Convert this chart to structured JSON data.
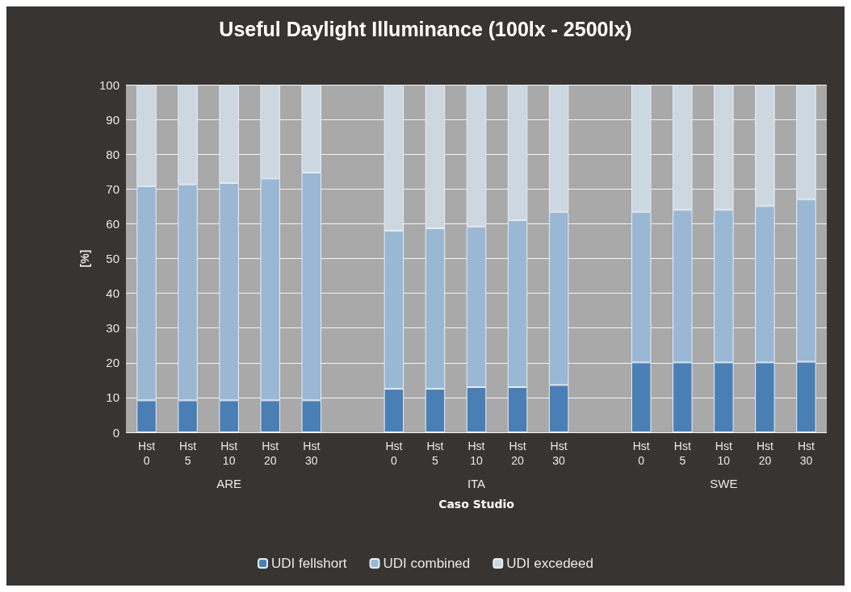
{
  "chart_data": {
    "type": "bar",
    "title": "Useful Daylight Illuminance (100lx - 2500lx)",
    "xlabel": "Caso Studio",
    "ylabel": "[%]",
    "categories": [
      "Hst 0",
      "Hst 5",
      "Hst 10",
      "Hst 20",
      "Hst 30",
      null,
      "Hst 0",
      "Hst 5",
      "Hst 10",
      "Hst 20",
      "Hst 30",
      null,
      "Hst 0",
      "Hst 5",
      "Hst 10",
      "Hst 20",
      "Hst 30"
    ],
    "annotations": [
      "ARE",
      "ITA",
      "SWE"
    ],
    "stacked": true,
    "series": [
      {
        "name": "UDI fellshort",
        "color": "#4a7fb5",
        "values": [
          9.2,
          9.2,
          9.2,
          9.2,
          9.2,
          null,
          12.5,
          12.5,
          13,
          13,
          13.6,
          null,
          20.1,
          20.1,
          20.1,
          20.1,
          20.3
        ]
      },
      {
        "name": "UDI combined",
        "color": "#9ab8d4",
        "values": [
          61.6,
          62.1,
          62.5,
          63.8,
          65.5,
          null,
          45.5,
          46.2,
          46.2,
          48,
          49.8,
          null,
          43.3,
          43.9,
          43.9,
          45,
          46.7
        ]
      },
      {
        "name": "UDI excedeed",
        "color": "#cdd7e0",
        "values": [
          29.2,
          28.7,
          28.3,
          27,
          25.3,
          null,
          42,
          41.3,
          40.8,
          39,
          36.6,
          null,
          36.6,
          36,
          36,
          34.9,
          33
        ]
      }
    ],
    "ylim": [
      0,
      100
    ],
    "yticks": [
      0,
      10,
      20,
      30,
      40,
      50,
      60,
      70,
      80,
      90,
      100
    ],
    "grid": "y",
    "legend": "bottom"
  }
}
